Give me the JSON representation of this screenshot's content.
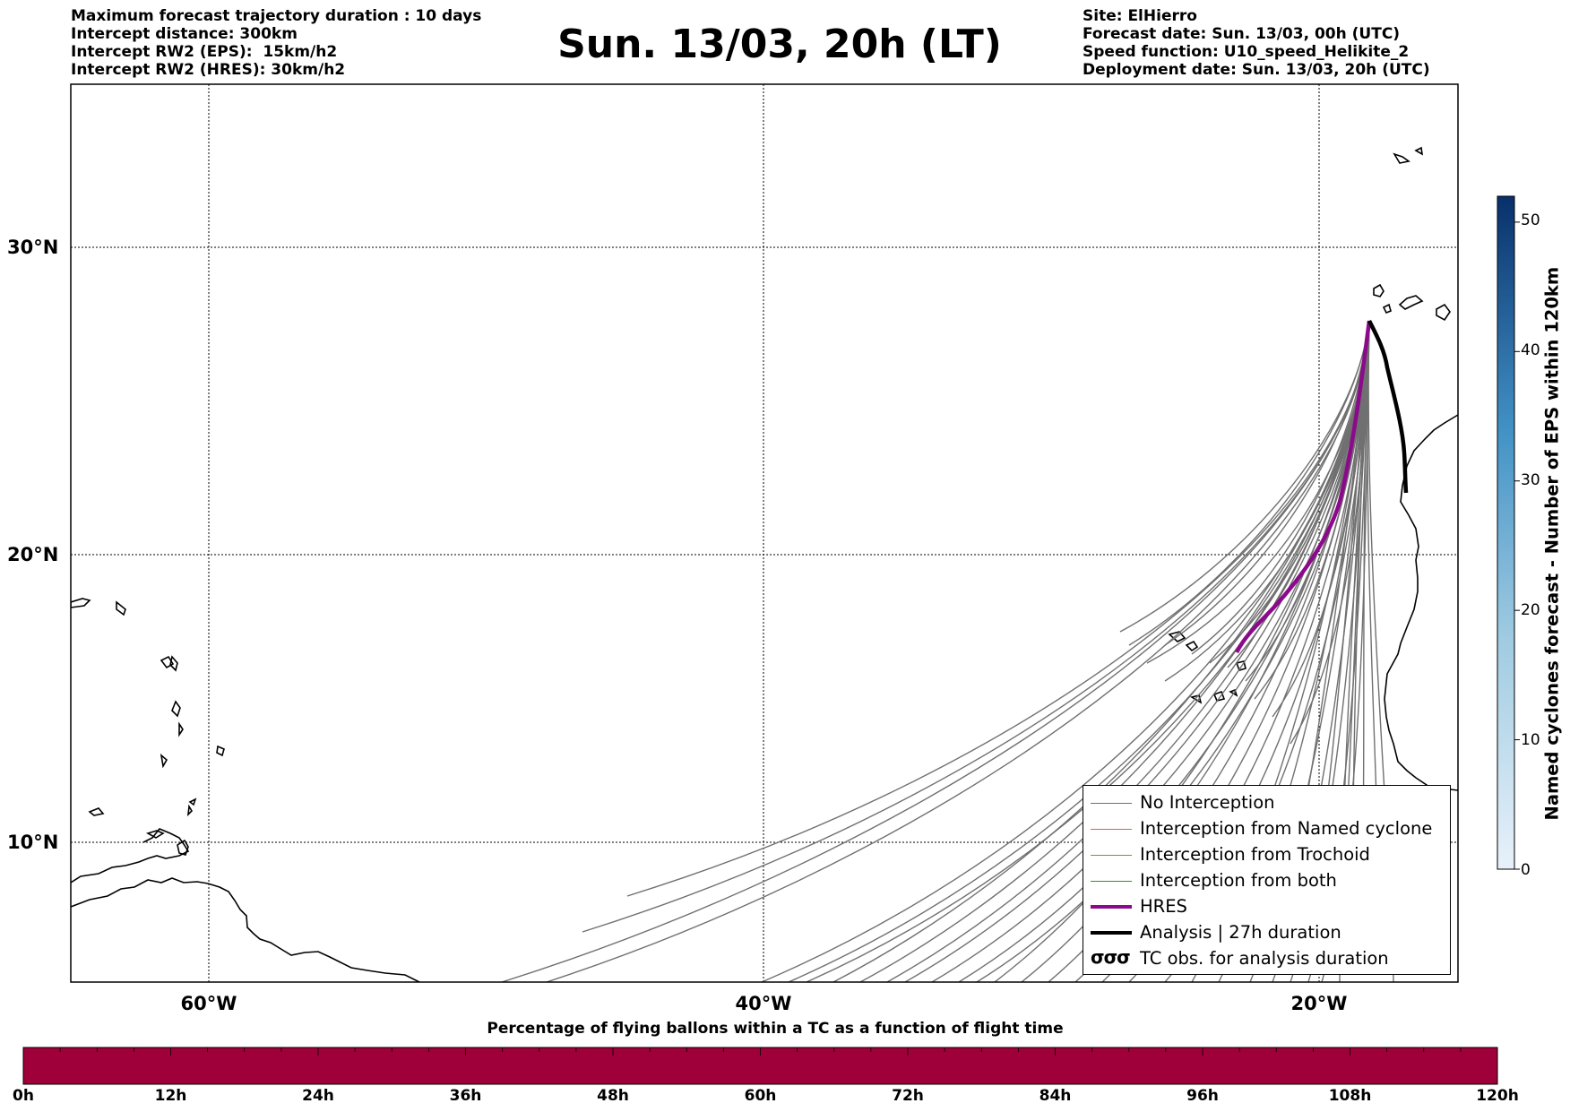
{
  "title": "Sun. 13/03, 20h (LT)",
  "info_left": [
    "Maximum forecast trajectory duration : 10 days",
    "Intercept distance: 300km",
    "Intercept RW2 (EPS):  15km/h2",
    "Intercept RW2 (HRES): 30km/h2"
  ],
  "info_right": [
    "Site: ElHierro",
    "Forecast date: Sun. 13/03, 00h (UTC)",
    "Speed function: U10_speed_Helikite_2",
    "Deployment date: Sun. 13/03, 20h (UTC)"
  ],
  "map": {
    "lat_labels": [
      "30°N",
      "20°N",
      "10°N"
    ],
    "lon_labels": [
      "60°W",
      "40°W",
      "20°W"
    ],
    "grid_lat": [
      30,
      20,
      10
    ],
    "grid_lon": [
      -60,
      -40,
      -20
    ],
    "extent": {
      "lon_min": -65,
      "lon_max": -15,
      "lat_min": 5.4,
      "lat_max": 35.3
    },
    "release_point": {
      "lon": -18.3,
      "lat": 27.6
    },
    "colors": {
      "no_interception": "#707070",
      "named_cyclone": "#e8642a",
      "trochoid": "#8a8a3a",
      "both": "#3a8a3a",
      "hres": "#8b0a8b",
      "analysis": "#000000",
      "land": "#000000"
    }
  },
  "legend": [
    {
      "label": "No Interception",
      "style": "no_interception"
    },
    {
      "label": "Interception from Named cyclone",
      "style": "named_cyclone"
    },
    {
      "label": "Interception from Trochoid",
      "style": "trochoid"
    },
    {
      "label": "Interception from both",
      "style": "both"
    },
    {
      "label": "HRES",
      "style": "hres"
    },
    {
      "label": "Analysis | 27h duration",
      "style": "analysis"
    },
    {
      "label": "TC obs. for analysis duration",
      "style": "tc_obs",
      "symbol": "σσσ"
    }
  ],
  "colorbar": {
    "label": "Named cyclones forecast - Number of EPS within 120km",
    "ticks": [
      "50",
      "40",
      "30",
      "20",
      "10",
      "0"
    ],
    "min": 0,
    "max": 52,
    "color_low": "#e8f1fa",
    "color_high": "#08306b"
  },
  "time_bar": {
    "title": "Percentage of flying ballons within a TC as a function of flight time",
    "color": "#a0003a",
    "ticks": [
      "0h",
      "12h",
      "24h",
      "36h",
      "48h",
      "60h",
      "72h",
      "84h",
      "96h",
      "108h",
      "120h"
    ]
  }
}
